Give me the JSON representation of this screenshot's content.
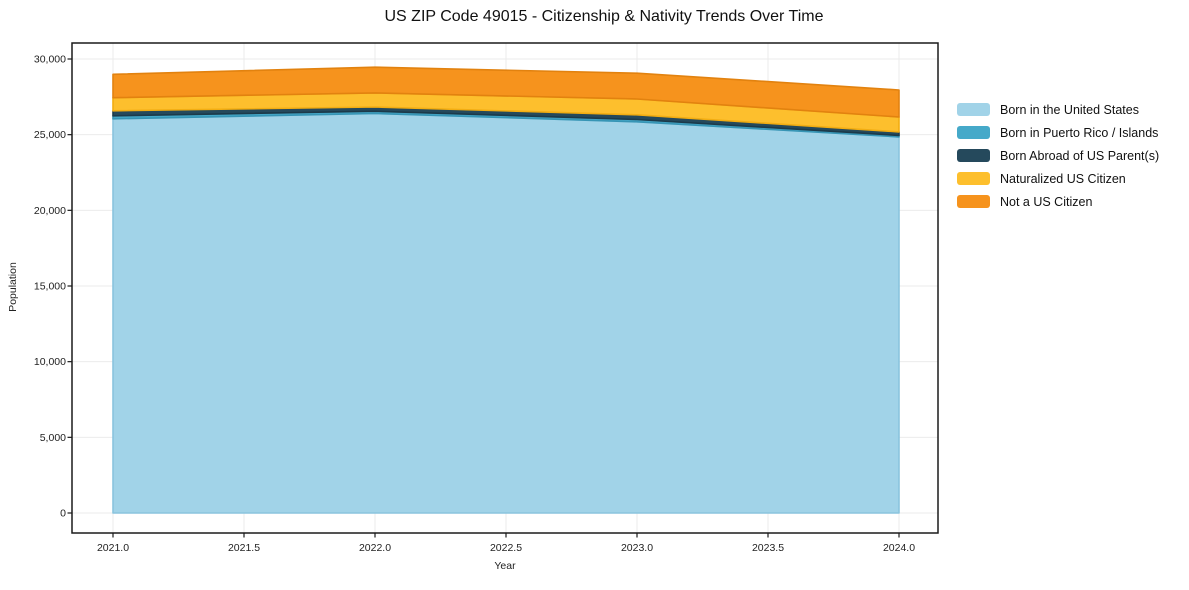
{
  "title": "US ZIP Code 49015 - Citizenship & Nativity Trends Over Time",
  "chart_data": {
    "type": "area",
    "stacked": true,
    "title": "US ZIP Code 49015 - Citizenship & Nativity Trends Over Time",
    "xlabel": "Year",
    "ylabel": "Population",
    "x": [
      2021,
      2022,
      2023,
      2024
    ],
    "series": [
      {
        "name": "Born in the United States",
        "color": "#a1d3e8",
        "edge_color": "#8ac4de",
        "values": [
          26050,
          26400,
          25850,
          24850
        ]
      },
      {
        "name": "Born in Puerto Rico / Islands",
        "color": "#45a9c9",
        "edge_color": "#3795b5",
        "values": [
          200,
          150,
          150,
          100
        ]
      },
      {
        "name": "Born Abroad of US Parent(s)",
        "color": "#25495c",
        "edge_color": "#1c3a4a",
        "values": [
          330,
          280,
          310,
          230
        ]
      },
      {
        "name": "Naturalized US Citizen",
        "color": "#fdbf2d",
        "edge_color": "#f2ad12",
        "values": [
          860,
          930,
          1050,
          990
        ]
      },
      {
        "name": "Not a US Citizen",
        "color": "#f6931d",
        "edge_color": "#e2820f",
        "values": [
          1550,
          1700,
          1700,
          1780
        ]
      }
    ],
    "x_ticks": [
      2021.0,
      2021.5,
      2022.0,
      2022.5,
      2023.0,
      2023.5,
      2024.0
    ],
    "x_tick_labels": [
      "2021.0",
      "2021.5",
      "2022.0",
      "2022.5",
      "2023.0",
      "2023.5",
      "2024.0"
    ],
    "y_ticks": [
      0,
      5000,
      10000,
      15000,
      20000,
      25000,
      30000
    ],
    "y_tick_labels": [
      "0",
      "5,000",
      "10,000",
      "15,000",
      "20,000",
      "25,000",
      "30,000"
    ],
    "xlim": [
      2020.84,
      2024.15
    ],
    "ylim": [
      0,
      30000
    ],
    "grid": true,
    "grid_color": "#ebebeb",
    "frame_color": "#1a1a1a",
    "legend_position": "right"
  }
}
